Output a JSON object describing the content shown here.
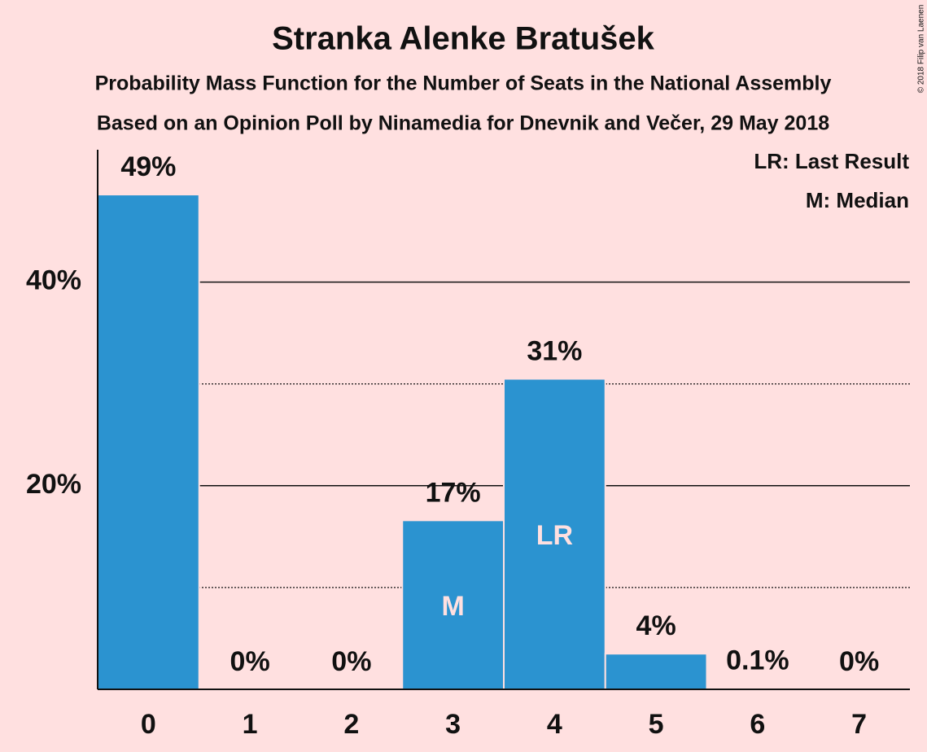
{
  "chart_data": {
    "type": "bar",
    "title": "Stranka Alenke Bratušek",
    "subtitle": "Probability Mass Function for the Number of Seats in the National Assembly",
    "subtitle2": "Based on an Opinion Poll by Ninamedia for Dnevnik and Večer, 29 May 2018",
    "copyright": "© 2018 Filip van Laenen",
    "legend": [
      "LR: Last Result",
      "M: Median"
    ],
    "categories": [
      "0",
      "1",
      "2",
      "3",
      "4",
      "5",
      "6",
      "7"
    ],
    "values": [
      48.6,
      0,
      0,
      16.6,
      30.5,
      3.5,
      0.1,
      0
    ],
    "value_labels": [
      "49%",
      "0%",
      "0%",
      "17%",
      "31%",
      "4%",
      "0.1%",
      "0%"
    ],
    "markers": [
      {
        "index": 3,
        "label": "M"
      },
      {
        "index": 4,
        "label": "LR"
      }
    ],
    "color": "#2b93d0",
    "ylim": [
      0,
      53
    ],
    "yticks": [
      {
        "value": 20,
        "label": "20%"
      },
      {
        "value": 40,
        "label": "40%"
      }
    ],
    "minor_yticks": [
      10,
      30
    ],
    "grid": true
  }
}
